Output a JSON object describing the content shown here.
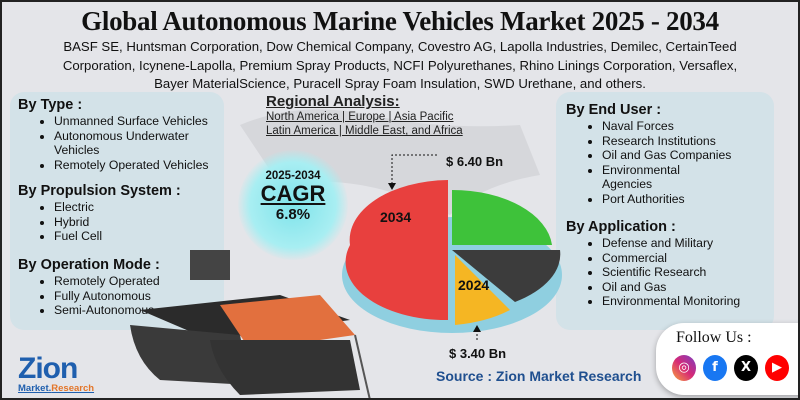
{
  "title": "Global Autonomous Marine Vehicles Market 2025 - 2034",
  "companies": [
    "BASF SE, Huntsman Corporation, Dow Chemical Company, Covestro AG, Lapolla Industries, Demilec, CertainTeed",
    "Corporation, Icynene-Lapolla, Premium Spray Products, NCFI Polyurethanes, Rhino Linings Corporation, Versaflex,",
    "Bayer MaterialScience, Puracell Spray Foam Insulation, SWD Urethane, and others."
  ],
  "left": [
    {
      "heading": "By Type  :",
      "items": [
        "Unmanned Surface Vehicles",
        "Autonomous Underwater Vehicles",
        "Remotely Operated Vehicles"
      ]
    },
    {
      "heading": "By Propulsion System :",
      "items": [
        "Electric",
        "Hybrid",
        "Fuel Cell"
      ]
    },
    {
      "heading": "By Operation Mode :",
      "items": [
        "Remotely Operated",
        "Fully Autonomous",
        "Semi-Autonomous"
      ]
    }
  ],
  "right": [
    {
      "heading": "By End User :",
      "items": [
        "Naval Forces",
        "Research Institutions",
        "Oil and Gas Companies",
        "Environmental Agencies",
        "Port Authorities"
      ]
    },
    {
      "heading": "By Application :",
      "items": [
        "Defense and Military",
        "Commercial",
        "Scientific Research",
        "Oil and Gas",
        "Environmental Monitoring"
      ]
    }
  ],
  "region": {
    "heading": "Regional Analysis:",
    "line1": "North America | Europe | Asia Pacific",
    "line2": "Latin America | Middle East, and Africa"
  },
  "cagr": {
    "period": "2025-2034",
    "label": "CAGR",
    "value": "6.8%"
  },
  "market": {
    "value_2034": "$ 6.40 Bn",
    "value_2024": "$ 3.40 Bn",
    "year_2034": "2034",
    "year_2024": "2024"
  },
  "pie_colors": {
    "red": "#e8403e",
    "green": "#3ec23a",
    "dark": "#3c3c3c",
    "yellow": "#f5b623",
    "light_blue": "#7fd8ee"
  },
  "source": "Source : Zion Market Research",
  "follow": {
    "label": "Follow Us :",
    "icons": [
      "instagram-icon",
      "facebook-icon",
      "x-icon",
      "youtube-icon"
    ]
  },
  "logo": {
    "name": "Zion",
    "sub1": "Market.",
    "sub2": "Research"
  }
}
